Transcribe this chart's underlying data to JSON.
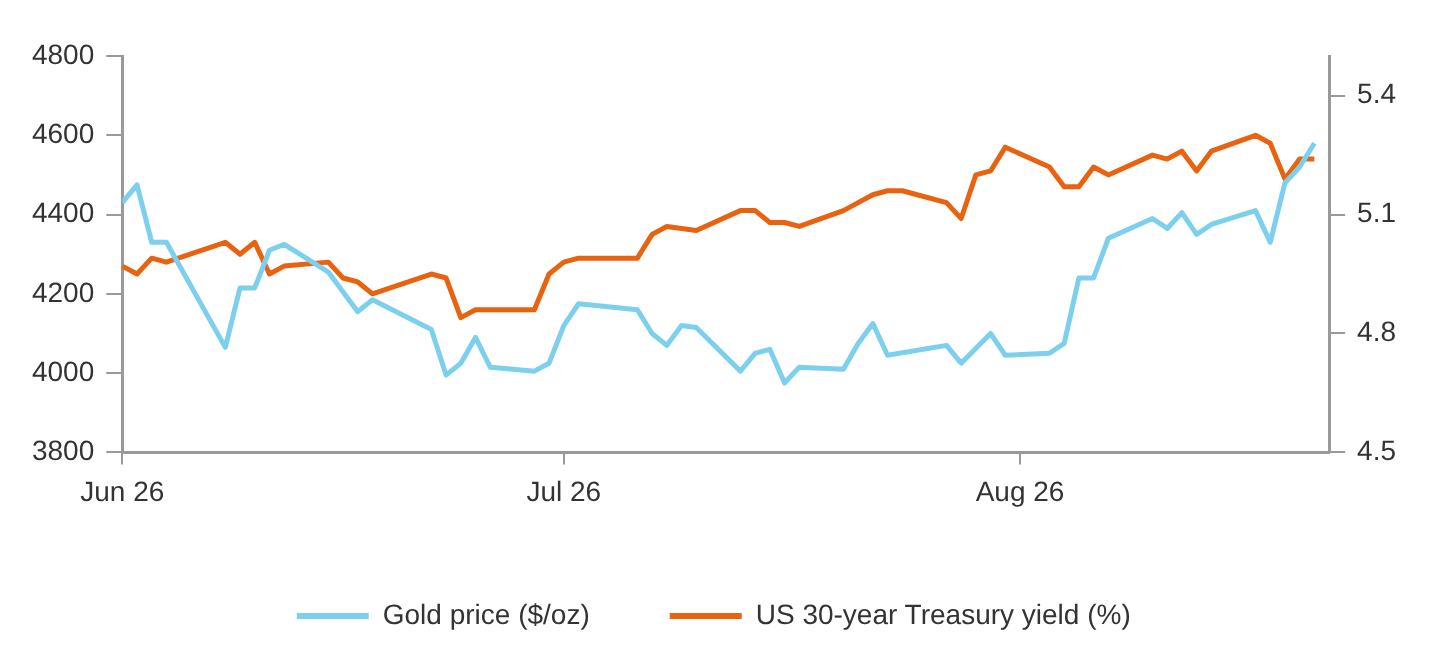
{
  "chart_data": {
    "type": "line",
    "series": [
      {
        "name": "Gold price ($/oz)",
        "color": "#7dcfee",
        "x": [
          "2026-06-01",
          "2026-06-02",
          "2026-06-03",
          "2026-06-04",
          "2026-06-08",
          "2026-06-09",
          "2026-06-10",
          "2026-06-11",
          "2026-06-12",
          "2026-06-15",
          "2026-06-17",
          "2026-06-18",
          "2026-06-22",
          "2026-06-23",
          "2026-06-24",
          "2026-06-25",
          "2026-06-26",
          "2026-06-29",
          "2026-06-30",
          "2026-07-01",
          "2026-07-02",
          "2026-07-06",
          "2026-07-07",
          "2026-07-08",
          "2026-07-09",
          "2026-07-10",
          "2026-07-13",
          "2026-07-14",
          "2026-07-15",
          "2026-07-16",
          "2026-07-17",
          "2026-07-20",
          "2026-07-21",
          "2026-07-22",
          "2026-07-23",
          "2026-07-27",
          "2026-07-28",
          "2026-07-30",
          "2026-07-31",
          "2026-08-03",
          "2026-08-04",
          "2026-08-05",
          "2026-08-06",
          "2026-08-07",
          "2026-08-10",
          "2026-08-11",
          "2026-08-12",
          "2026-08-13",
          "2026-08-14",
          "2026-08-17",
          "2026-08-18",
          "2026-08-19",
          "2026-08-20",
          "2026-08-21"
        ],
        "values": [
          4430,
          4475,
          4330,
          4330,
          4065,
          4215,
          4215,
          4310,
          4325,
          4255,
          4155,
          4185,
          4110,
          3995,
          4025,
          4090,
          4015,
          4005,
          4025,
          4120,
          4175,
          4160,
          4100,
          4070,
          4120,
          4115,
          4005,
          4050,
          4060,
          3975,
          4015,
          4010,
          4075,
          4125,
          4045,
          4070,
          4025,
          4100,
          4045,
          4050,
          4075,
          4240,
          4240,
          4340,
          4390,
          4365,
          4405,
          4350,
          4375,
          4410,
          4330,
          4480,
          4520,
          4580
        ]
      },
      {
        "name": "US 30-year Treasury yield (%)",
        "color": "#e8620f",
        "axis": "y2",
        "x": [
          "2026-06-01",
          "2026-06-02",
          "2026-06-03",
          "2026-06-04",
          "2026-06-08",
          "2026-06-09",
          "2026-06-10",
          "2026-06-11",
          "2026-06-12",
          "2026-06-15",
          "2026-06-16",
          "2026-06-17",
          "2026-06-18",
          "2026-06-22",
          "2026-06-23",
          "2026-06-24",
          "2026-06-25",
          "2026-06-26",
          "2026-06-29",
          "2026-06-30",
          "2026-07-01",
          "2026-07-02",
          "2026-07-06",
          "2026-07-07",
          "2026-07-08",
          "2026-07-10",
          "2026-07-13",
          "2026-07-14",
          "2026-07-15",
          "2026-07-16",
          "2026-07-17",
          "2026-07-20",
          "2026-07-21",
          "2026-07-22",
          "2026-07-23",
          "2026-07-24",
          "2026-07-27",
          "2026-07-28",
          "2026-07-29",
          "2026-07-30",
          "2026-07-31",
          "2026-08-03",
          "2026-08-04",
          "2026-08-05",
          "2026-08-06",
          "2026-08-07",
          "2026-08-10",
          "2026-08-11",
          "2026-08-12",
          "2026-08-13",
          "2026-08-14",
          "2026-08-17",
          "2026-08-18",
          "2026-08-19",
          "2026-08-20",
          "2026-08-21"
        ],
        "values": [
          4.97,
          4.95,
          4.99,
          4.98,
          5.03,
          5.0,
          5.03,
          4.95,
          4.97,
          4.98,
          4.94,
          4.93,
          4.9,
          4.95,
          4.94,
          4.84,
          4.86,
          4.86,
          4.86,
          4.95,
          4.98,
          4.99,
          4.99,
          5.05,
          5.07,
          5.06,
          5.11,
          5.11,
          5.08,
          5.08,
          5.07,
          5.11,
          5.13,
          5.15,
          5.16,
          5.16,
          5.13,
          5.09,
          5.2,
          5.21,
          5.27,
          5.22,
          5.17,
          5.17,
          5.22,
          5.2,
          5.25,
          5.24,
          5.26,
          5.21,
          5.26,
          5.3,
          5.28,
          5.19,
          5.24,
          5.24
        ]
      }
    ],
    "xlim": [
      "2026-06-01",
      "2026-08-22"
    ],
    "xticks": [
      {
        "value": "2026-06-01",
        "label": "Jun 26"
      },
      {
        "value": "2026-07-01",
        "label": "Jul 26"
      },
      {
        "value": "2026-08-01",
        "label": "Aug 26"
      }
    ],
    "ylim": [
      3800,
      4800
    ],
    "yticks": [
      3800,
      4000,
      4200,
      4400,
      4600,
      4800
    ],
    "y2lim": [
      4.5,
      5.5
    ],
    "y2ticks": [
      4.5,
      4.8,
      5.1,
      5.4
    ],
    "grid": false,
    "legend": "bottom",
    "marker": "none",
    "line_style": "solid"
  }
}
